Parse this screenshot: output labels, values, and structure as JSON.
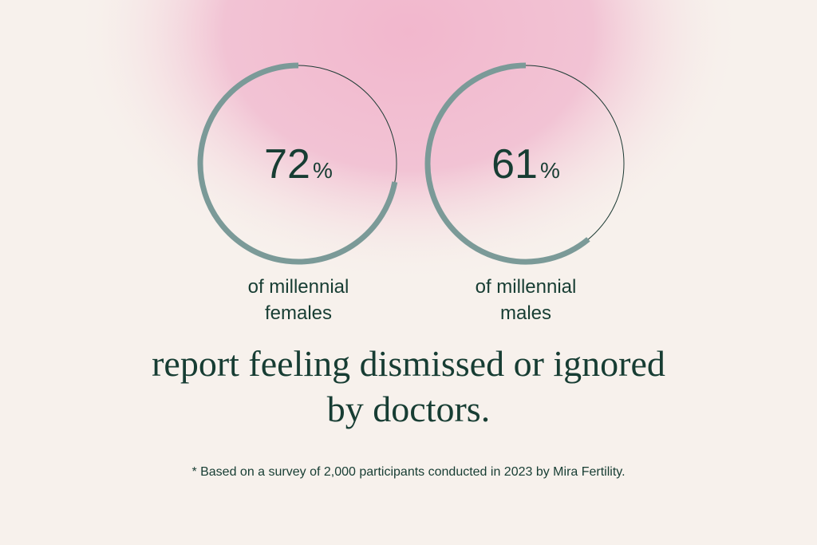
{
  "stats": [
    {
      "value": 72,
      "unit": "%",
      "label_lines": [
        "of millennial",
        "females"
      ]
    },
    {
      "value": 61,
      "unit": "%",
      "label_lines": [
        "of millennial",
        "males"
      ]
    }
  ],
  "headline_lines": [
    "report feeling dismissed or ignored",
    "by doctors."
  ],
  "footnote": "* Based on a survey of 2,000 participants conducted in 2023 by Mira Fertility."
}
